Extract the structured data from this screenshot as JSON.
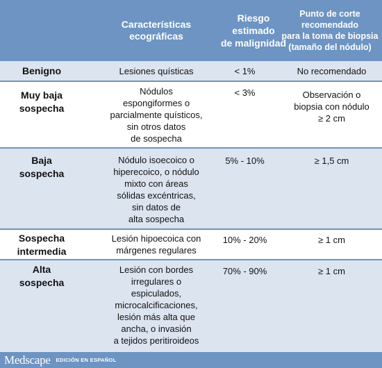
{
  "header": {
    "col_caracteristicas": "Características\necográficas",
    "col_riesgo": "Riesgo\nestimado\nde malignidad",
    "col_punto": "Punto de corte\nrecomendado\npara la toma de biopsia\n(tamaño del nódulo)"
  },
  "rows": [
    {
      "categoria": "Benigno",
      "caracteristicas": "Lesiones quísticas",
      "riesgo": "< 1%",
      "punto": "No recomendado"
    },
    {
      "categoria": "Muy baja\nsospecha",
      "caracteristicas": "Nódulos\nespongiformes o\nparcialmente quísticos,\nsin otros datos\nde sospecha",
      "riesgo": "< 3%",
      "punto": "Observación o\nbiopsia con nódulo\n≥ 2 cm"
    },
    {
      "categoria": "Baja\nsospecha",
      "caracteristicas": "Nódulo isoecoico o\nhiperecoico, o nódulo\nmixto con áreas\nsólidas excéntricas,\nsin datos de\nalta sospecha",
      "riesgo": "5% - 10%",
      "punto": "≥ 1,5 cm"
    },
    {
      "categoria": "Sospecha\nintermedia",
      "caracteristicas": "Lesión hipoecoica con\nmárgenes regulares",
      "riesgo": "10% - 20%",
      "punto": "≥ 1 cm"
    },
    {
      "categoria": "Alta\nsospecha",
      "caracteristicas": "Lesión con bordes\nirregulares o\nespiculados,\nmicrocalcificaciones,\nlesión más alta que\nancha, o invasión\na tejidos peritiroideos",
      "riesgo": "70% - 90%",
      "punto": "≥ 1 cm"
    }
  ],
  "footer": {
    "logo": "Medscape",
    "edition": "EDICIÓN EN ESPAÑOL"
  },
  "colors": {
    "header_bg": "#6d94c2",
    "alt_row_bg": "#dce4f0",
    "text": "#111111"
  }
}
